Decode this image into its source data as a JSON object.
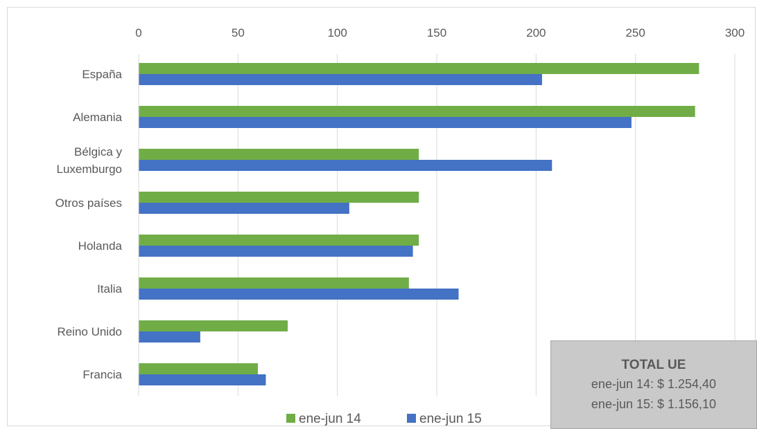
{
  "chart_data": {
    "type": "bar",
    "orientation": "horizontal",
    "categories": [
      "España",
      "Alemania",
      "Bélgica y Luxemburgo",
      "Otros países",
      "Holanda",
      "Italia",
      "Reino Unido",
      "Francia"
    ],
    "category_lines": [
      [
        "España"
      ],
      [
        "Alemania"
      ],
      [
        "Bélgica y",
        "Luxemburgo"
      ],
      [
        "Otros países"
      ],
      [
        "Holanda"
      ],
      [
        "Italia"
      ],
      [
        "Reino Unido"
      ],
      [
        "Francia"
      ]
    ],
    "series": [
      {
        "name": "ene-jun 14",
        "color": "#70ad47",
        "values": [
          282,
          280,
          141,
          141,
          141,
          136,
          75,
          60
        ]
      },
      {
        "name": "ene-jun 15",
        "color": "#4472c4",
        "values": [
          203,
          248,
          208,
          106,
          138,
          161,
          31,
          64
        ]
      }
    ],
    "x_ticks": [
      "0",
      "50",
      "100",
      "150",
      "200",
      "250",
      "300"
    ],
    "xlim": [
      0,
      300
    ],
    "grid": true,
    "x_axis_position": "top",
    "legend_position": "bottom"
  },
  "total_box": {
    "title": "TOTAL UE",
    "line1": "ene-jun 14: $ 1.254,40",
    "line2": "ene-jun 15: $ 1.156,10"
  }
}
